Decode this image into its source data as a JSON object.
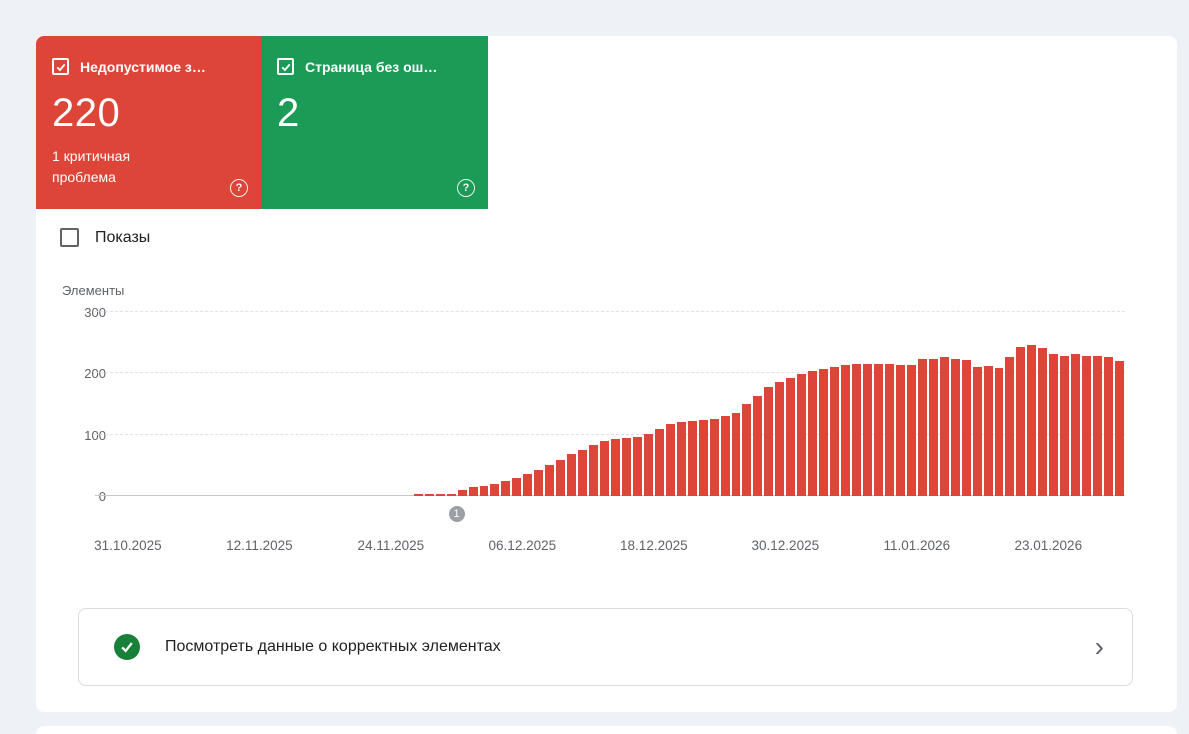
{
  "page": {
    "background": "#eef1f5"
  },
  "summary_cards": [
    {
      "label": "Недопустимое з…",
      "value": "220",
      "subtext": "1 критичная проблема",
      "color": "#dc4537",
      "checked": true
    },
    {
      "label": "Страница без ош…",
      "value": "2",
      "subtext": "",
      "color": "#1b9b55",
      "checked": true
    }
  ],
  "impressions": {
    "label": "Показы",
    "checked": false
  },
  "chart_data": {
    "type": "bar",
    "title": "",
    "ylabel": "Элементы",
    "xlabel": "",
    "ylim": [
      0,
      300
    ],
    "yticks": [
      0,
      100,
      200,
      300
    ],
    "grid": "dashed-horizontal",
    "legend": "none",
    "bar_color": "#dc4537",
    "axis_total_days": 94,
    "first_bar_day_offset": 29,
    "first_bar_date": "26.11.2025",
    "values": [
      3,
      4,
      3,
      3,
      10,
      14,
      17,
      20,
      25,
      30,
      36,
      42,
      50,
      58,
      68,
      75,
      83,
      90,
      93,
      95,
      96,
      101,
      110,
      117,
      120,
      122,
      124,
      126,
      131,
      136,
      150,
      163,
      177,
      186,
      192,
      199,
      204,
      207,
      211,
      213,
      215,
      215,
      216,
      215,
      214,
      213,
      224,
      223,
      226,
      224,
      222,
      210,
      212,
      208,
      226,
      243,
      246,
      241,
      231,
      229,
      231,
      229,
      228,
      227,
      220
    ],
    "xticks": [
      {
        "label": "31.10.2025",
        "day": 3
      },
      {
        "label": "12.11.2025",
        "day": 15
      },
      {
        "label": "24.11.2025",
        "day": 27
      },
      {
        "label": "06.12.2025",
        "day": 39
      },
      {
        "label": "18.12.2025",
        "day": 51
      },
      {
        "label": "30.12.2025",
        "day": 63
      },
      {
        "label": "11.01.2026",
        "day": 75
      },
      {
        "label": "23.01.2026",
        "day": 87
      }
    ],
    "annotation": {
      "label": "1",
      "day": 33
    }
  },
  "footer_action": {
    "label": "Посмотреть данные о корректных элементах"
  },
  "icons": {
    "help": "?",
    "chevron_right": "›"
  },
  "status_colors": {
    "error": "#dc4537",
    "valid": "#1b9b55",
    "valid_dark": "#188038",
    "annotation": "#9aa0a6"
  }
}
